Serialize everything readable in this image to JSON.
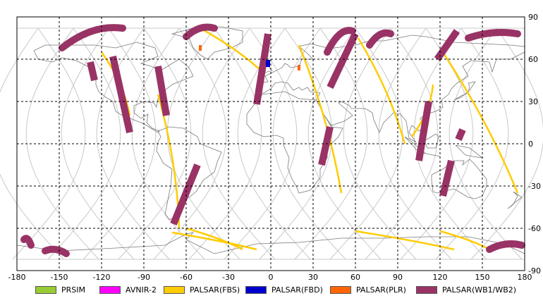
{
  "colors": {
    "background": "#ffffff",
    "grid": "#000000",
    "track": "#c8c8c8",
    "coast": "#7a7a7a",
    "prism": "#99cc33",
    "avnir2": "#ff00ff",
    "palsar_fbs": "#ffcc00",
    "palsar_fbd": "#0000cc",
    "palsar_plr": "#ff6600",
    "palsar_wb": "#993366"
  },
  "chart_data": {
    "type": "map",
    "xlim": [
      -180,
      180
    ],
    "ylim": [
      -90,
      90
    ],
    "grid": true,
    "grid_style": "dashed",
    "x_ticks": [
      {
        "value": -180,
        "label": "-180"
      },
      {
        "value": -150,
        "label": "-150"
      },
      {
        "value": -120,
        "label": "-120"
      },
      {
        "value": -90,
        "label": "-90"
      },
      {
        "value": -60,
        "label": "-60"
      },
      {
        "value": -30,
        "label": "-30"
      },
      {
        "value": 0,
        "label": "0"
      },
      {
        "value": 30,
        "label": "30"
      },
      {
        "value": 60,
        "label": "60"
      },
      {
        "value": 90,
        "label": "90"
      },
      {
        "value": 120,
        "label": "120"
      },
      {
        "value": 150,
        "label": "150"
      },
      {
        "value": 180,
        "label": "180"
      }
    ],
    "y_ticks": [
      {
        "value": 90,
        "label": "90"
      },
      {
        "value": 60,
        "label": "60"
      },
      {
        "value": 30,
        "label": "30"
      },
      {
        "value": 0,
        "label": "0"
      },
      {
        "value": -30,
        "label": "-30"
      },
      {
        "value": -60,
        "label": "-60"
      },
      {
        "value": -90,
        "label": "-90"
      }
    ],
    "legend": [
      {
        "key": "prism",
        "label": "PRSIM"
      },
      {
        "key": "avnir2",
        "label": "AVNIR-2"
      },
      {
        "key": "palsar_fbs",
        "label": "PALSAR(FBS)"
      },
      {
        "key": "palsar_fbd",
        "label": "PALSAR(FBD)"
      },
      {
        "key": "palsar_plr",
        "label": "PALSAR(PLR)"
      },
      {
        "key": "palsar_wb",
        "label": "PALSAR(WB1/WB2)"
      }
    ],
    "ground_track_longitudes": [
      -165,
      -140,
      -115,
      -90,
      -65,
      -40,
      -15,
      10,
      35,
      60,
      85,
      110,
      135,
      160
    ],
    "wb_swaths": [
      {
        "lon1": -128,
        "lat1": 58,
        "lon2": -125,
        "lat2": 45
      },
      {
        "lon1": -112,
        "lat1": 62,
        "lon2": -100,
        "lat2": 8
      },
      {
        "lon1": -80,
        "lat1": 55,
        "lon2": -74,
        "lat2": 20
      },
      {
        "lon1": -52,
        "lat1": -15,
        "lon2": -69,
        "lat2": -57
      },
      {
        "lon1": -2,
        "lat1": 78,
        "lon2": -10,
        "lat2": 28
      },
      {
        "lon1": 42,
        "lat1": 12,
        "lon2": 36,
        "lat2": -15
      },
      {
        "lon1": 60,
        "lat1": 78,
        "lon2": 42,
        "lat2": 40
      },
      {
        "lon1": 112,
        "lat1": 30,
        "lon2": 105,
        "lat2": -12
      },
      {
        "lon1": 132,
        "lat1": 80,
        "lon2": 118,
        "lat2": 60
      },
      {
        "lon1": 128,
        "lat1": -12,
        "lon2": 122,
        "lat2": -37
      },
      {
        "lon1": 136,
        "lat1": 10,
        "lon2": 133,
        "lat2": 3
      }
    ],
    "wb_arcs": [
      {
        "lon1": -105,
        "lat1": 82,
        "lon2": -148,
        "lat2": 68
      },
      {
        "lon1": -40,
        "lat1": 82,
        "lon2": -60,
        "lat2": 76
      },
      {
        "lon1": 58,
        "lat1": 80,
        "lon2": 40,
        "lat2": 65
      },
      {
        "lon1": 85,
        "lat1": 78,
        "lon2": 70,
        "lat2": 70
      },
      {
        "lon1": 175,
        "lat1": 78,
        "lon2": 140,
        "lat2": 75
      },
      {
        "lon1": 155,
        "lat1": -75,
        "lon2": 178,
        "lat2": -72
      },
      {
        "lon1": -175,
        "lat1": -68,
        "lon2": -170,
        "lat2": -72
      },
      {
        "lon1": -160,
        "lat1": -76,
        "lon2": -145,
        "lat2": -78
      }
    ],
    "fbs_swaths": [
      {
        "lon1": -50,
        "lat1": 82,
        "lon2": -5,
        "lat2": 50
      },
      {
        "lon1": -80,
        "lat1": 35,
        "lon2": -65,
        "lat2": -60
      },
      {
        "lon1": 20,
        "lat1": 70,
        "lon2": 50,
        "lat2": -35
      },
      {
        "lon1": 62,
        "lat1": 75,
        "lon2": 95,
        "lat2": 0
      },
      {
        "lon1": 122,
        "lat1": 65,
        "lon2": 175,
        "lat2": -35
      },
      {
        "lon1": 115,
        "lat1": 42,
        "lon2": 100,
        "lat2": 5
      },
      {
        "lon1": -120,
        "lat1": 65,
        "lon2": -100,
        "lat2": 20
      },
      {
        "lon1": -60,
        "lat1": -60,
        "lon2": -20,
        "lat2": -75
      },
      {
        "lon1": 60,
        "lat1": -62,
        "lon2": 130,
        "lat2": -75
      },
      {
        "lon1": 120,
        "lat1": -62,
        "lon2": 155,
        "lat2": -75
      },
      {
        "lon1": -70,
        "lat1": -63,
        "lon2": -10,
        "lat2": -75
      }
    ],
    "fbd_spots": [
      {
        "lon": -2,
        "lat": 57
      }
    ],
    "plr_spots": [
      {
        "lon": -50,
        "lat": 68
      },
      {
        "lon": 20,
        "lat": 54
      }
    ]
  }
}
